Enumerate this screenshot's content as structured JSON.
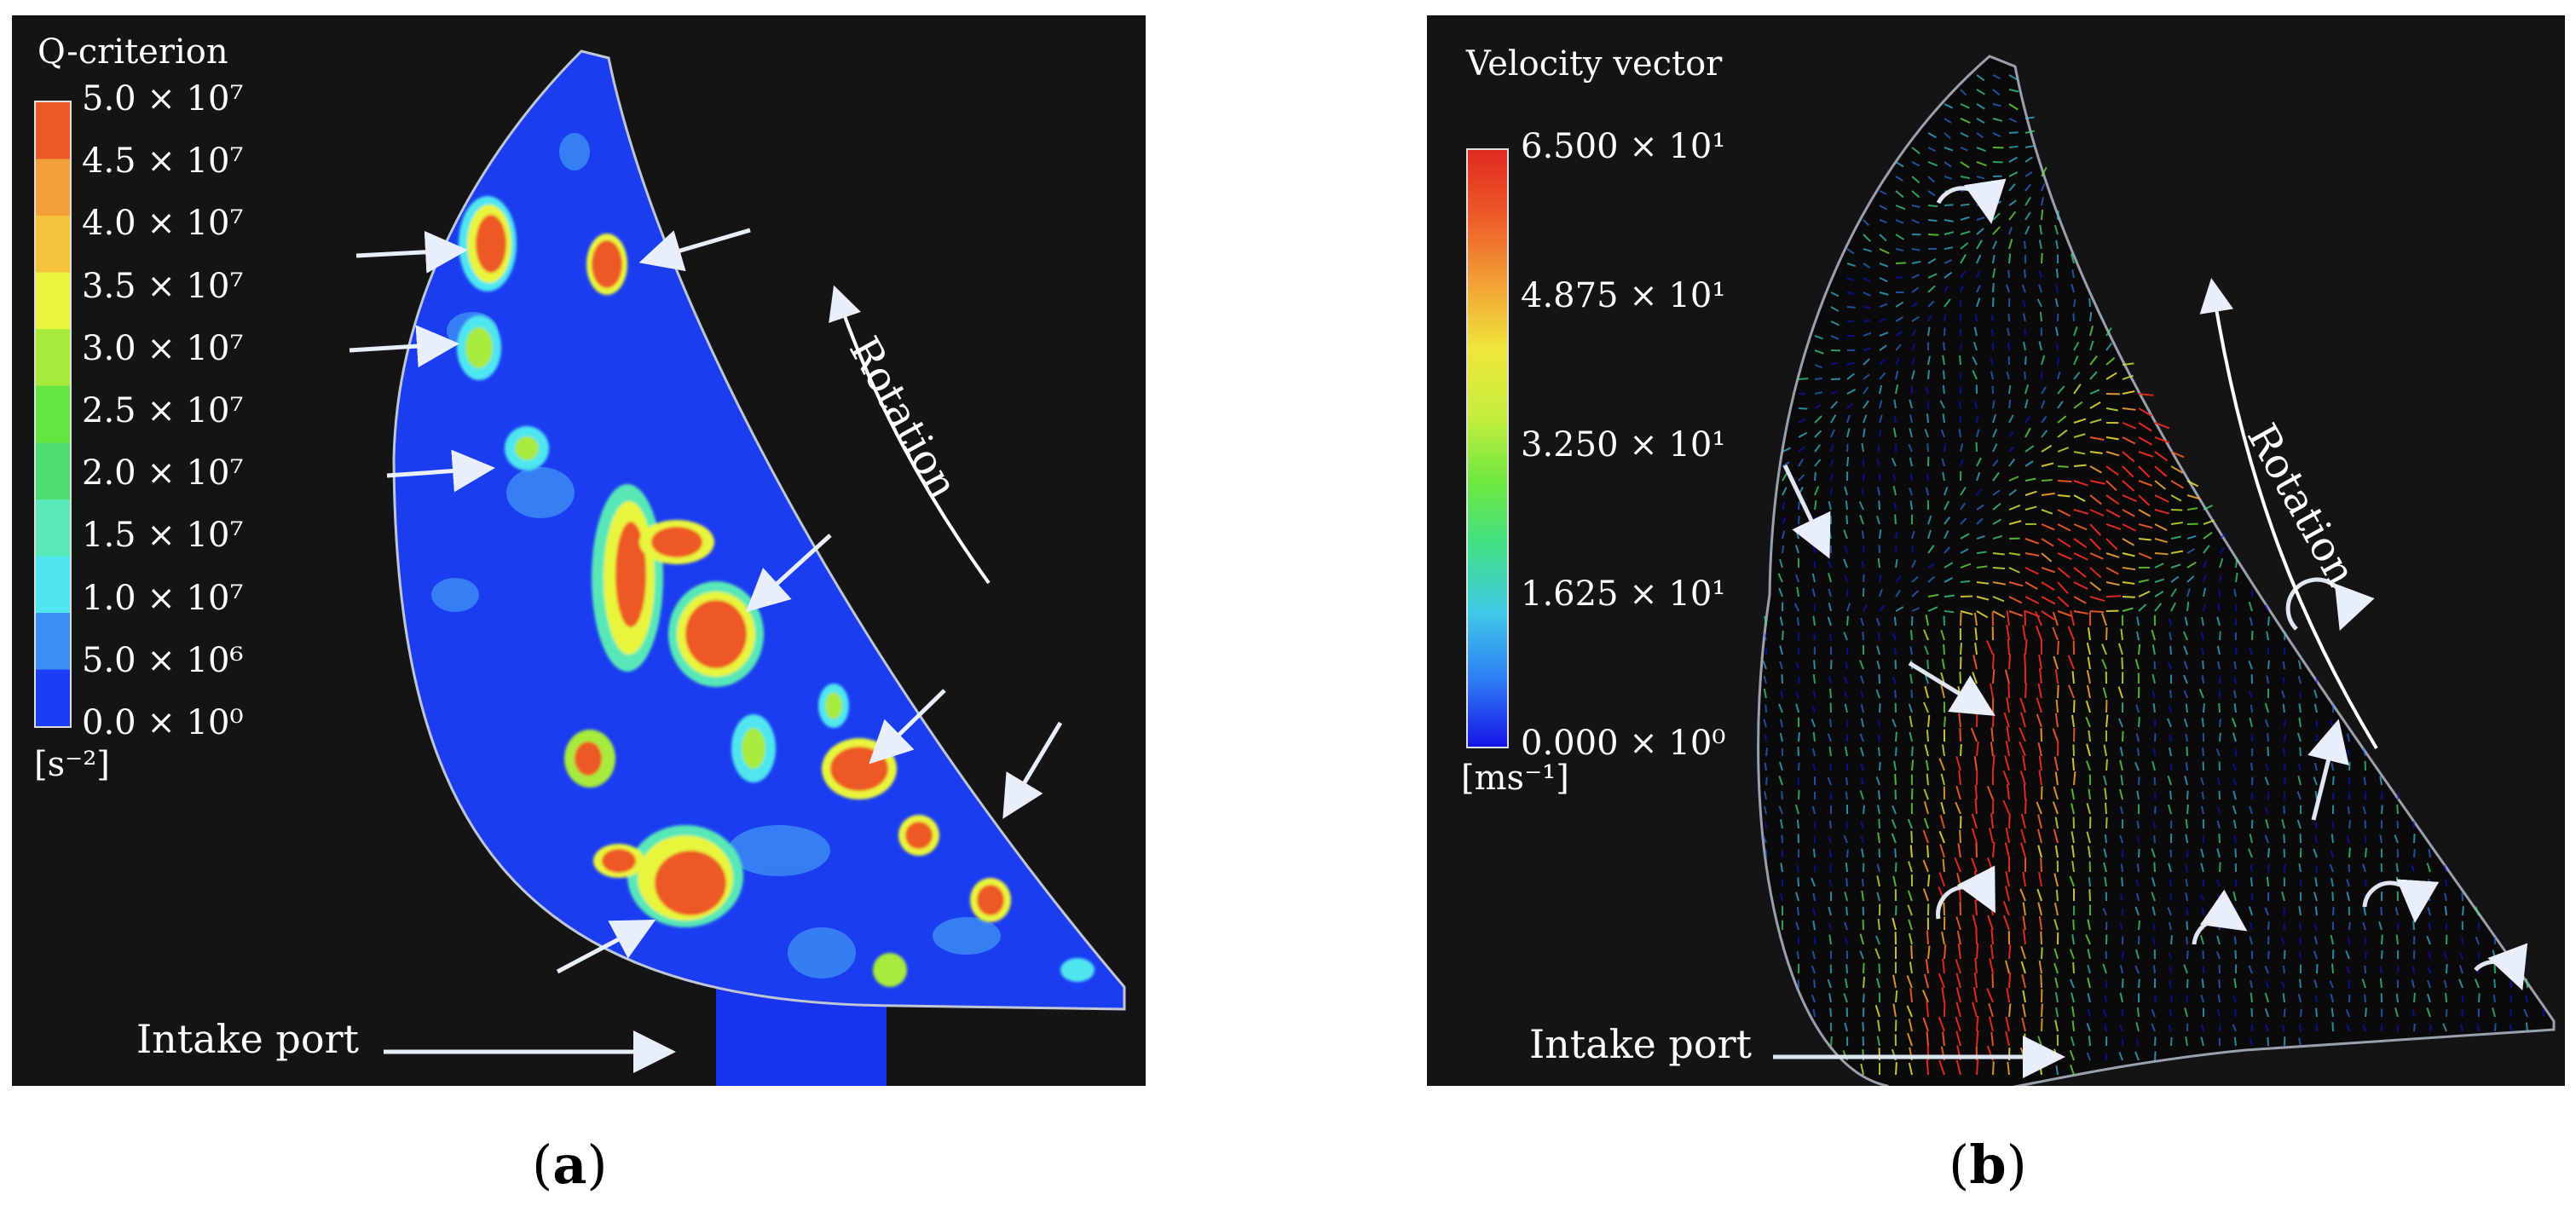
{
  "chart_data": [
    {
      "type": "heatmap",
      "panel_label": "a",
      "legend_title": "Q-criterion",
      "units": "[s⁻²]",
      "legend_ticks": [
        "5.0 × 10⁷",
        "4.5 × 10⁷",
        "4.0 × 10⁷",
        "3.5 × 10⁷",
        "3.0 × 10⁷",
        "2.5 × 10⁷",
        "2.0 × 10⁷",
        "1.5 × 10⁷",
        "1.0 × 10⁷",
        "5.0 × 10⁶",
        "0.0 × 10⁰"
      ],
      "range": [
        0,
        50000000
      ],
      "colors": [
        "#1a3df5",
        "#3d8ef5",
        "#4fe6f0",
        "#59e8b8",
        "#4fdc6e",
        "#63e63f",
        "#a8ea3c",
        "#e8f53c",
        "#f5c23c",
        "#f2a03a",
        "#ec5828"
      ],
      "annotations": {
        "rotation": "Rotation",
        "intake": "Intake port"
      }
    },
    {
      "type": "heatmap",
      "panel_label": "b",
      "legend_title": "Velocity vector",
      "units": "[ms⁻¹]",
      "legend_ticks": [
        "6.500 × 10¹",
        "4.875 × 10¹",
        "3.250 × 10¹",
        "1.625 × 10¹",
        "0.000 × 10⁰"
      ],
      "range": [
        0,
        65
      ],
      "colors": [
        "#1414e6",
        "#2e7cf5",
        "#3ec8e8",
        "#3fe08a",
        "#6ee83f",
        "#c8ee3c",
        "#f0e63a",
        "#f2a035",
        "#ee5a28",
        "#e02a20"
      ],
      "annotations": {
        "rotation": "Rotation",
        "intake": "Intake port"
      }
    }
  ]
}
